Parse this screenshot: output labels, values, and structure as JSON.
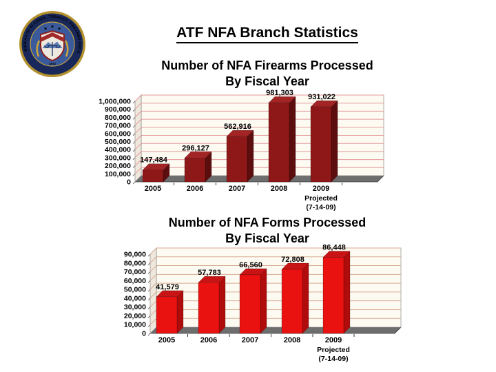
{
  "slide": {
    "title": "ATF NFA Branch Statistics"
  },
  "logo": {
    "ring_text": "BUREAU OF ALCOHOL, TOBACCO, FIREARMS AND EXPLOSIVES",
    "year": "1972"
  },
  "chart_data": [
    {
      "type": "bar",
      "title": "Number of NFA Firearms Processed",
      "title_line2": "By Fiscal Year",
      "categories": [
        "2005",
        "2006",
        "2007",
        "2008",
        "2009"
      ],
      "last_category_note": [
        "Projected",
        "(7-14-09)"
      ],
      "values": [
        147484,
        296127,
        562916,
        981303,
        931022
      ],
      "data_labels": [
        "147,484",
        "296,127",
        "562,916",
        "981,303",
        "931,022"
      ],
      "xlabel": "",
      "ylabel": "",
      "ylim": [
        0,
        1000000
      ],
      "ytick_labels": [
        "0",
        "100,000",
        "200,000",
        "300,000",
        "400,000",
        "500,000",
        "600,000",
        "700,000",
        "800,000",
        "900,000",
        "1,000,000"
      ],
      "grid": true,
      "legend": "none",
      "colors": {
        "bar_front": "#8e1818",
        "bar_side": "#5c0d0d",
        "bar_top": "#a22424",
        "gridline": "#e49a9a",
        "plot_bg": "#fdfaf2",
        "wall": "#efe8dd",
        "floor": "#6e6e6e"
      }
    },
    {
      "type": "bar",
      "title": "Number of NFA Forms Processed",
      "title_line2": "By Fiscal Year",
      "categories": [
        "2005",
        "2006",
        "2007",
        "2008",
        "2009"
      ],
      "last_category_note": [
        "Projected",
        "(7-14-09)"
      ],
      "values": [
        41579,
        57783,
        66560,
        72808,
        86448
      ],
      "data_labels": [
        "41,579",
        "57,783",
        "66,560",
        "72,808",
        "86,448"
      ],
      "xlabel": "",
      "ylabel": "",
      "ylim": [
        0,
        90000
      ],
      "ytick_labels": [
        "0",
        "10,000",
        "20,000",
        "30,000",
        "40,000",
        "50,000",
        "60,000",
        "70,000",
        "80,000",
        "90,000"
      ],
      "grid": true,
      "legend": "none",
      "colors": {
        "bar_front": "#ea1111",
        "bar_side": "#b00c0c",
        "bar_top": "#c81414",
        "gridline": "#d8ab92",
        "plot_bg": "#fdfaf2",
        "wall": "#efe8dd",
        "floor": "#6e6e6e"
      }
    }
  ]
}
